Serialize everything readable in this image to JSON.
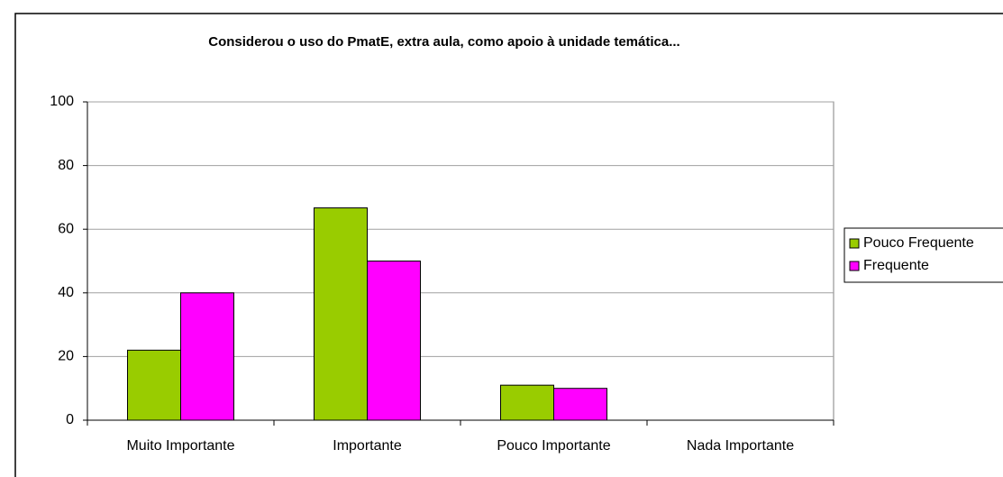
{
  "chart_data": {
    "type": "bar",
    "title": "Considerou o uso do PmatE, extra aula, como apoio à unidade temática...",
    "categories": [
      "Muito Importante",
      "Importante",
      "Pouco Importante",
      "Nada Importante"
    ],
    "series": [
      {
        "name": "Pouco Frequente",
        "color": "#99cc00",
        "values": [
          22,
          66.7,
          11,
          0
        ]
      },
      {
        "name": "Frequente",
        "color": "#ff00ff",
        "values": [
          40,
          50,
          10,
          0
        ]
      }
    ],
    "ylim": [
      0,
      100
    ],
    "yticks": [
      0,
      20,
      40,
      60,
      80,
      100
    ],
    "grid": true,
    "legend": "right"
  }
}
